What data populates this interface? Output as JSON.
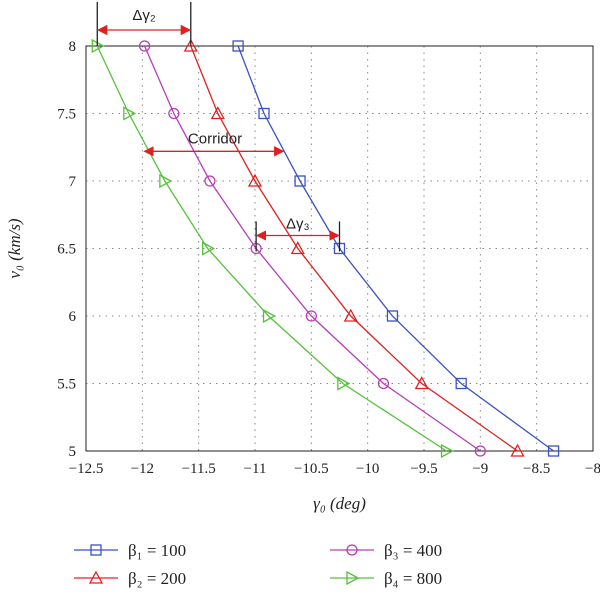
{
  "chart_data": {
    "type": "line",
    "xlabel": "γ₀ (deg)",
    "ylabel": "v₀ (km/s)",
    "xlim": [
      -12.5,
      -8
    ],
    "ylim": [
      5,
      8
    ],
    "xticks": [
      -12.5,
      -12,
      -11.5,
      -11,
      -10.5,
      -10,
      -9.5,
      -9,
      -8.5,
      -8
    ],
    "yticks": [
      5,
      5.5,
      6,
      6.5,
      7,
      7.5,
      8
    ],
    "xtick_labels": [
      "−12.5",
      "−12",
      "−11.5",
      "−11",
      "−10.5",
      "−10",
      "−9.5",
      "−9",
      "−8.5",
      "−8"
    ],
    "ytick_labels": [
      "5",
      "5.5",
      "6",
      "6.5",
      "7",
      "7.5",
      "8"
    ],
    "grid": true,
    "legend_position": "bottom",
    "series": [
      {
        "name": "β₁ = 100",
        "color": "#3a52c4",
        "marker": "square",
        "points": [
          [
            -11.15,
            8
          ],
          [
            -10.92,
            7.5
          ],
          [
            -10.6,
            7
          ],
          [
            -10.25,
            6.5
          ],
          [
            -9.78,
            6
          ],
          [
            -9.17,
            5.5
          ],
          [
            -8.35,
            5
          ]
        ]
      },
      {
        "name": "β₂ = 200",
        "color": "#e02020",
        "marker": "triangle-up",
        "points": [
          [
            -11.57,
            8
          ],
          [
            -11.33,
            7.5
          ],
          [
            -11.0,
            7
          ],
          [
            -10.62,
            6.5
          ],
          [
            -10.15,
            6
          ],
          [
            -9.52,
            5.5
          ],
          [
            -8.67,
            5
          ]
        ]
      },
      {
        "name": "β₃ = 400",
        "color": "#b83cb8",
        "marker": "circle",
        "points": [
          [
            -11.98,
            8
          ],
          [
            -11.72,
            7.5
          ],
          [
            -11.4,
            7
          ],
          [
            -10.99,
            6.5
          ],
          [
            -10.5,
            6
          ],
          [
            -9.86,
            5.5
          ],
          [
            -9.0,
            5
          ]
        ]
      },
      {
        "name": "β₄ = 800",
        "color": "#55c23a",
        "marker": "triangle-right",
        "points": [
          [
            -12.4,
            8
          ],
          [
            -12.12,
            7.5
          ],
          [
            -11.8,
            7
          ],
          [
            -11.42,
            6.5
          ],
          [
            -10.88,
            6
          ],
          [
            -10.22,
            5.5
          ],
          [
            -9.3,
            5
          ]
        ]
      }
    ],
    "annotations": [
      {
        "label": "Δγ₂",
        "type": "bracket-arrow",
        "x_from": -12.4,
        "x_to": -11.57,
        "y": 8
      },
      {
        "label": "Corridor",
        "type": "double-arrow",
        "x_from": -11.98,
        "x_to": -10.75,
        "y": 7.22
      },
      {
        "label": "Δγ₃",
        "type": "bracket-arrow",
        "x_from": -10.99,
        "x_to": -10.25,
        "y": 6.5
      }
    ]
  }
}
